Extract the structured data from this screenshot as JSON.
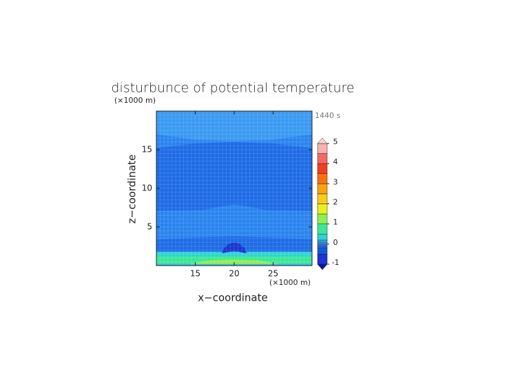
{
  "chart_data": {
    "type": "contour",
    "title": "disturbunce of potential temperature",
    "x_label": "x−coordinate",
    "y_label": "z−coordinate",
    "x_unit": "(×1000 m)",
    "y_unit": "(×1000 m)",
    "annotation": "1440 s",
    "xlim": [
      10,
      30
    ],
    "ylim": [
      0,
      20
    ],
    "xticks": [
      15,
      20,
      25
    ],
    "yticks": [
      5,
      10,
      15
    ],
    "levels": [
      -1,
      -0.5,
      -0.2,
      -0.1,
      0,
      0.1,
      0.2,
      0.5,
      1,
      1.5,
      2,
      2.5,
      3,
      3.5,
      4,
      4.5,
      5
    ],
    "colors": [
      "#1c34d0",
      "#1656dc",
      "#1e6ce6",
      "#2a84ee",
      "#3a9af2",
      "#3cb6f0",
      "#30d2d4",
      "#3ce69c",
      "#8cf050",
      "#e8f020",
      "#f8cc18",
      "#f8a410",
      "#f87010",
      "#f04020",
      "#f06868",
      "#f8b0b0"
    ],
    "under_color": "#1010a8",
    "over_color": "#f8d8d8",
    "cbar_ticks": [
      -1,
      0,
      1,
      2,
      3,
      4,
      5
    ],
    "regions": [
      {
        "value": -0.05,
        "points": [
          [
            10,
            0
          ],
          [
            30,
            0
          ],
          [
            30,
            20
          ],
          [
            10,
            20
          ]
        ]
      },
      {
        "value": -0.15,
        "points": [
          [
            10,
            15.2
          ],
          [
            15,
            15.8
          ],
          [
            20,
            16.0
          ],
          [
            25,
            15.8
          ],
          [
            30,
            15.2
          ],
          [
            30,
            7.1
          ],
          [
            24,
            7.2
          ],
          [
            22,
            7.6
          ],
          [
            20,
            7.9
          ],
          [
            18,
            7.6
          ],
          [
            16,
            7.2
          ],
          [
            10,
            7.1
          ]
        ]
      },
      {
        "value": 0.05,
        "points": [
          [
            10,
            20
          ],
          [
            30,
            20
          ],
          [
            30,
            17
          ],
          [
            25,
            16.3
          ],
          [
            20,
            16.1
          ],
          [
            15,
            16.3
          ],
          [
            10,
            17
          ]
        ]
      },
      {
        "value": -0.15,
        "points": [
          [
            10,
            3.4
          ],
          [
            15,
            3.6
          ],
          [
            20,
            3.8
          ],
          [
            25,
            3.6
          ],
          [
            30,
            3.4
          ],
          [
            30,
            1.8
          ],
          [
            10,
            1.8
          ]
        ]
      },
      {
        "value": 0.3,
        "points": [
          [
            10,
            1.8
          ],
          [
            30,
            1.8
          ],
          [
            30,
            1.2
          ],
          [
            10,
            1.2
          ]
        ]
      },
      {
        "value": 0.7,
        "points": [
          [
            10,
            1.2
          ],
          [
            30,
            1.2
          ],
          [
            30,
            0.2
          ],
          [
            10,
            0.2
          ]
        ]
      },
      {
        "value": 1.2,
        "points": [
          [
            14,
            0.2
          ],
          [
            17,
            0.7
          ],
          [
            20,
            0.8
          ],
          [
            23,
            0.7
          ],
          [
            26,
            0.2
          ],
          [
            20,
            0.1
          ]
        ]
      },
      {
        "value": 0.15,
        "points": [
          [
            10,
            0.2
          ],
          [
            30,
            0.2
          ],
          [
            30,
            0
          ],
          [
            10,
            0
          ]
        ]
      },
      {
        "value": -0.7,
        "points": [
          [
            18.4,
            1.6
          ],
          [
            18.7,
            2.3
          ],
          [
            19.3,
            2.8
          ],
          [
            20,
            3.0
          ],
          [
            20.7,
            2.8
          ],
          [
            21.3,
            2.3
          ],
          [
            21.6,
            1.6
          ],
          [
            20,
            1.9
          ]
        ]
      }
    ]
  }
}
